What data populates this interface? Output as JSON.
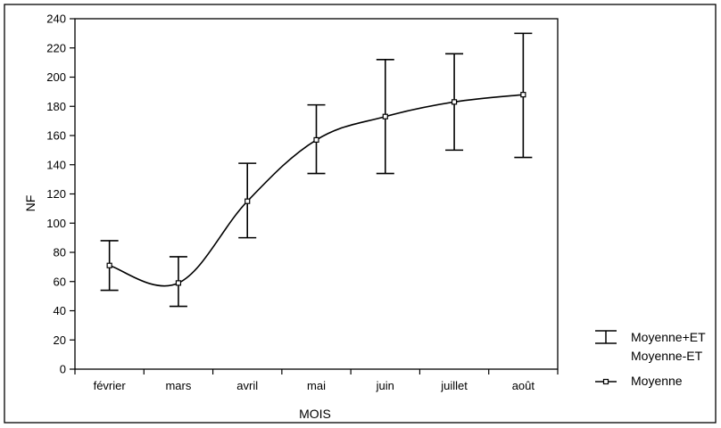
{
  "chart_data": {
    "type": "line",
    "xlabel": "MOIS",
    "ylabel": "NF",
    "ylim": [
      0,
      240
    ],
    "yticks": [
      0,
      20,
      40,
      60,
      80,
      100,
      120,
      140,
      160,
      180,
      200,
      220,
      240
    ],
    "categories": [
      "février",
      "mars",
      "avril",
      "mai",
      "juin",
      "juillet",
      "août"
    ],
    "series": [
      {
        "name": "Moyenne",
        "values": [
          71,
          59,
          115,
          157,
          173,
          183,
          188
        ]
      },
      {
        "name": "Moyenne+ET",
        "values": [
          88,
          77,
          141,
          181,
          212,
          216,
          230
        ]
      },
      {
        "name": "Moyenne-ET",
        "values": [
          54,
          43,
          90,
          134,
          134,
          150,
          145
        ]
      }
    ],
    "grid": false,
    "legend_position": "right",
    "legend": [
      {
        "label": "Moyenne+ET",
        "marker": "error-bar"
      },
      {
        "label": "Moyenne-ET",
        "marker": "none"
      },
      {
        "label": "Moyenne",
        "marker": "line-square"
      }
    ],
    "colors": {
      "line": "#000000",
      "background": "#ffffff"
    }
  }
}
